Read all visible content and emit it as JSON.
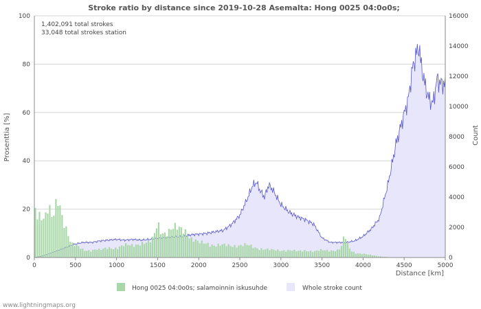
{
  "chart_data": {
    "type": "bar+area",
    "title": "Stroke ratio by distance since 2019-10-28 Asemalta: Hong 0025 04:0o0s;",
    "info": [
      "1,402,091 total strokes",
      "33,048 total strokes station"
    ],
    "xlabel": "Distance   [km]",
    "ylabel_left": "Prosenttia   [%]",
    "ylabel_right": "Count",
    "xlim": [
      0,
      5000
    ],
    "ylim_left": [
      0,
      100
    ],
    "ylim_right": [
      0,
      16000
    ],
    "x_ticks": [
      0,
      500,
      1000,
      1500,
      2000,
      2500,
      3000,
      3500,
      4000,
      4500,
      5000
    ],
    "y_left_ticks": [
      0,
      20,
      40,
      60,
      80,
      100
    ],
    "y_right_ticks": [
      0,
      2000,
      4000,
      6000,
      8000,
      10000,
      12000,
      14000,
      16000
    ],
    "bin_km": 25,
    "ratio_anchors": [
      [
        0,
        22
      ],
      [
        25,
        19
      ],
      [
        50,
        17
      ],
      [
        75,
        19
      ],
      [
        100,
        18
      ],
      [
        125,
        16
      ],
      [
        150,
        20
      ],
      [
        175,
        21
      ],
      [
        200,
        17
      ],
      [
        225,
        15
      ],
      [
        250,
        19
      ],
      [
        275,
        22
      ],
      [
        300,
        24
      ],
      [
        325,
        18
      ],
      [
        350,
        17
      ],
      [
        375,
        13
      ],
      [
        400,
        12
      ],
      [
        425,
        8
      ],
      [
        450,
        6
      ],
      [
        475,
        5
      ],
      [
        500,
        5
      ],
      [
        550,
        4
      ],
      [
        600,
        3
      ],
      [
        650,
        3
      ],
      [
        700,
        3
      ],
      [
        750,
        3.5
      ],
      [
        800,
        3
      ],
      [
        900,
        4
      ],
      [
        1000,
        4
      ],
      [
        1100,
        5
      ],
      [
        1200,
        5
      ],
      [
        1300,
        6
      ],
      [
        1400,
        6
      ],
      [
        1450,
        8
      ],
      [
        1500,
        15
      ],
      [
        1525,
        12
      ],
      [
        1550,
        11
      ],
      [
        1600,
        10
      ],
      [
        1700,
        12
      ],
      [
        1800,
        12
      ],
      [
        1850,
        11
      ],
      [
        1900,
        8
      ],
      [
        2000,
        6
      ],
      [
        2100,
        6
      ],
      [
        2200,
        5
      ],
      [
        2300,
        5
      ],
      [
        2400,
        5
      ],
      [
        2500,
        5
      ],
      [
        2600,
        5
      ],
      [
        2700,
        4
      ],
      [
        2800,
        3.5
      ],
      [
        2900,
        3
      ],
      [
        3000,
        3
      ],
      [
        3100,
        3
      ],
      [
        3200,
        2.5
      ],
      [
        3300,
        3
      ],
      [
        3400,
        2.5
      ],
      [
        3500,
        3
      ],
      [
        3600,
        3
      ],
      [
        3700,
        3
      ],
      [
        3750,
        5
      ],
      [
        3775,
        10
      ],
      [
        3800,
        6
      ],
      [
        3850,
        3
      ],
      [
        3900,
        2
      ],
      [
        4000,
        1.5
      ],
      [
        4100,
        1
      ],
      [
        4200,
        0.5
      ],
      [
        4300,
        0.2
      ],
      [
        4400,
        0
      ],
      [
        5000,
        0
      ]
    ],
    "series": [
      {
        "name": "Hong 0025 04:0o0s; salamoinnin iskusuhde",
        "type": "bar",
        "axis": "left",
        "color": "#a8d8a8"
      },
      {
        "name": "Whole stroke count",
        "type": "area",
        "axis": "right",
        "color": "#e8e6fa",
        "line_color": "#5555cc"
      }
    ],
    "count_anchors": [
      [
        0,
        0
      ],
      [
        100,
        100
      ],
      [
        200,
        300
      ],
      [
        300,
        500
      ],
      [
        400,
        700
      ],
      [
        500,
        900
      ],
      [
        600,
        1000
      ],
      [
        700,
        1000
      ],
      [
        800,
        1100
      ],
      [
        900,
        1150
      ],
      [
        1000,
        1200
      ],
      [
        1100,
        1150
      ],
      [
        1200,
        1200
      ],
      [
        1300,
        1150
      ],
      [
        1400,
        1200
      ],
      [
        1500,
        1250
      ],
      [
        1600,
        1300
      ],
      [
        1700,
        1350
      ],
      [
        1800,
        1400
      ],
      [
        1900,
        1500
      ],
      [
        2000,
        1550
      ],
      [
        2100,
        1600
      ],
      [
        2200,
        1700
      ],
      [
        2300,
        1800
      ],
      [
        2400,
        2200
      ],
      [
        2500,
        2800
      ],
      [
        2600,
        4000
      ],
      [
        2650,
        4700
      ],
      [
        2700,
        5000
      ],
      [
        2750,
        4400
      ],
      [
        2800,
        4000
      ],
      [
        2850,
        4800
      ],
      [
        2900,
        4500
      ],
      [
        2950,
        4000
      ],
      [
        3000,
        3500
      ],
      [
        3100,
        3000
      ],
      [
        3200,
        2700
      ],
      [
        3300,
        2500
      ],
      [
        3400,
        2200
      ],
      [
        3500,
        1300
      ],
      [
        3600,
        1000
      ],
      [
        3700,
        1000
      ],
      [
        3800,
        1000
      ],
      [
        3900,
        1100
      ],
      [
        4000,
        1400
      ],
      [
        4100,
        1900
      ],
      [
        4200,
        2600
      ],
      [
        4300,
        4800
      ],
      [
        4400,
        7500
      ],
      [
        4500,
        9500
      ],
      [
        4550,
        10500
      ],
      [
        4600,
        12500
      ],
      [
        4650,
        13500
      ],
      [
        4680,
        14000
      ],
      [
        4700,
        13000
      ],
      [
        4750,
        11500
      ],
      [
        4800,
        10500
      ],
      [
        4850,
        10200
      ],
      [
        4900,
        11800
      ],
      [
        4950,
        11500
      ],
      [
        5000,
        11500
      ]
    ]
  },
  "legend": {
    "bar_label": "Hong 0025 04:0o0s; salamoinnin iskusuhde",
    "area_label": "Whole stroke count"
  },
  "footer": "www.lightningmaps.org"
}
